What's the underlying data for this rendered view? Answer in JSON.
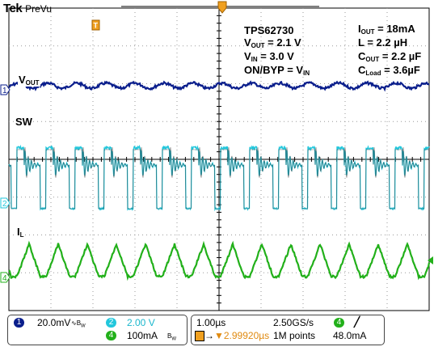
{
  "brand": {
    "name": "Tek",
    "mode": "PreVu"
  },
  "annotations": {
    "line1_left": "TPS62730",
    "line2_left_main": "V",
    "line2_left_sub": "OUT",
    "line2_left_rest": " = 2.1 V",
    "line3_left_main": "V",
    "line3_left_sub": "IN",
    "line3_left_rest": " = 3.0 V",
    "line4_left_main": "ON/BYP = V",
    "line4_left_sub": "IN",
    "line1_right_main": "I",
    "line1_right_sub": "OUT",
    "line1_right_rest": " = 18mA",
    "line2_right": "L = 2.2 µH",
    "line3_right_main": "C",
    "line3_right_sub": "OUT",
    "line3_right_rest": " = 2.2 µF",
    "line4_right_main": "C",
    "line4_right_sub": "Load",
    "line4_right_rest": " = 3.6µF"
  },
  "channel_labels": {
    "vout_main": "V",
    "vout_sub": "OUT",
    "sw": "SW",
    "il_main": "I",
    "il_sub": "L"
  },
  "markers": {
    "ch1": "1",
    "ch2": "2",
    "ch4": "4",
    "trigger": "T"
  },
  "status": {
    "ch1_badge": "1",
    "ch1_scale": "20.0mV",
    "ch2_badge": "2",
    "ch2_scale": "2.00 V",
    "ch4_badge": "4",
    "ch4_scale": "100mA",
    "timebase": "1.00µs",
    "trigger_pos": "▼2.99920µs",
    "sample_rate": "2.50GS/s",
    "record_length": "1M points",
    "trig_badge": "4",
    "trig_level": "48.0mA"
  },
  "colors": {
    "ch1": "#0a1e8c",
    "ch2": "#22c7dc",
    "ch4": "#22b01a",
    "trigger": "#f0a020",
    "grid": "#000000",
    "grid_dot": "#9a9a9a"
  },
  "icons": {
    "bw_limit": "bandwidth-limit-icon",
    "trigger_slope": "rising-edge-icon"
  }
}
